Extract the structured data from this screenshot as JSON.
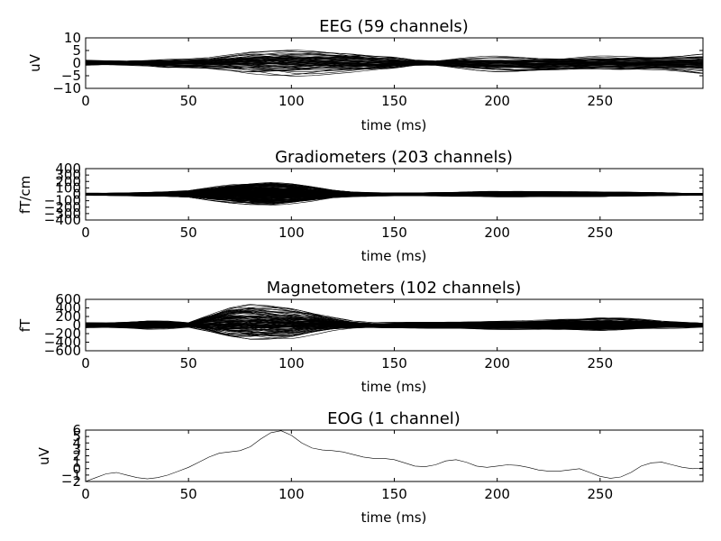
{
  "chart_data": [
    {
      "type": "line",
      "title": "EEG (59 channels)",
      "xlabel": "time (ms)",
      "ylabel": "uV",
      "xlim": [
        0,
        300
      ],
      "ylim": [
        -10,
        10
      ],
      "xticks": [
        0,
        50,
        100,
        150,
        200,
        250
      ],
      "yticks": [
        10,
        5,
        0,
        -5,
        -10
      ],
      "ytick_labels": [
        "10",
        "5",
        "0",
        "−5",
        "−10"
      ],
      "n_channels": 59,
      "line_color": "#000000",
      "envelope": {
        "x": [
          0,
          10,
          20,
          30,
          40,
          50,
          60,
          70,
          80,
          90,
          100,
          110,
          120,
          130,
          140,
          150,
          160,
          170,
          180,
          190,
          200,
          210,
          220,
          230,
          240,
          250,
          260,
          270,
          280,
          290,
          300
        ],
        "upper": [
          1.2,
          1.0,
          1.0,
          1.4,
          2.0,
          2.2,
          2.6,
          4.0,
          5.6,
          6.2,
          6.4,
          5.8,
          5.2,
          4.6,
          3.8,
          3.0,
          1.6,
          1.2,
          2.0,
          2.6,
          3.0,
          3.0,
          2.6,
          2.6,
          2.8,
          3.0,
          2.8,
          2.8,
          2.6,
          3.0,
          4.0
        ],
        "lower": [
          -1.2,
          -0.8,
          -1.0,
          -1.4,
          -2.4,
          -2.6,
          -3.0,
          -4.0,
          -5.4,
          -6.0,
          -6.2,
          -5.6,
          -5.0,
          -4.6,
          -4.0,
          -3.0,
          -1.4,
          -1.2,
          -2.2,
          -3.2,
          -4.0,
          -4.2,
          -3.8,
          -3.6,
          -3.2,
          -3.0,
          -3.2,
          -3.2,
          -3.0,
          -3.6,
          -4.6
        ]
      }
    },
    {
      "type": "line",
      "title": "Gradiometers (203 channels)",
      "xlabel": "time (ms)",
      "ylabel": "fT/cm",
      "xlim": [
        0,
        300
      ],
      "ylim": [
        -400,
        400
      ],
      "xticks": [
        0,
        50,
        100,
        150,
        200,
        250
      ],
      "yticks": [
        400,
        300,
        200,
        100,
        0,
        -100,
        -200,
        -300,
        -400
      ],
      "ytick_labels": [
        "400",
        "300",
        "200",
        "100",
        "0",
        "−100",
        "−200",
        "−300",
        "−400"
      ],
      "n_channels": 203,
      "line_color": "#000000",
      "envelope": {
        "x": [
          0,
          10,
          20,
          30,
          40,
          50,
          60,
          70,
          80,
          90,
          100,
          110,
          120,
          130,
          140,
          150,
          160,
          170,
          180,
          190,
          200,
          210,
          220,
          230,
          240,
          250,
          260,
          270,
          280,
          290,
          300
        ],
        "upper": [
          20,
          20,
          25,
          35,
          45,
          60,
          110,
          160,
          190,
          200,
          170,
          120,
          70,
          40,
          30,
          25,
          25,
          30,
          35,
          45,
          50,
          50,
          45,
          45,
          45,
          40,
          40,
          35,
          30,
          20,
          15
        ],
        "lower": [
          -20,
          -20,
          -25,
          -35,
          -40,
          -50,
          -100,
          -140,
          -170,
          -180,
          -150,
          -110,
          -60,
          -40,
          -30,
          -25,
          -25,
          -30,
          -35,
          -40,
          -45,
          -45,
          -40,
          -40,
          -40,
          -40,
          -35,
          -30,
          -25,
          -20,
          -15
        ]
      }
    },
    {
      "type": "line",
      "title": "Magnetometers (102 channels)",
      "xlabel": "time (ms)",
      "ylabel": "fT",
      "xlim": [
        0,
        300
      ],
      "ylim": [
        -600,
        600
      ],
      "xticks": [
        0,
        50,
        100,
        150,
        200,
        250
      ],
      "yticks": [
        600,
        400,
        200,
        0,
        -200,
        -400,
        -600
      ],
      "ytick_labels": [
        "600",
        "400",
        "200",
        "0",
        "−200",
        "−400",
        "−600"
      ],
      "n_channels": 102,
      "line_color": "#000000",
      "envelope": {
        "x": [
          0,
          10,
          20,
          30,
          40,
          50,
          60,
          70,
          80,
          90,
          100,
          110,
          120,
          130,
          140,
          150,
          160,
          170,
          180,
          190,
          200,
          210,
          220,
          230,
          240,
          250,
          260,
          270,
          280,
          290,
          300
        ],
        "upper": [
          70,
          60,
          80,
          110,
          100,
          60,
          250,
          450,
          520,
          480,
          420,
          320,
          200,
          100,
          60,
          70,
          80,
          90,
          90,
          100,
          110,
          110,
          120,
          140,
          150,
          180,
          170,
          140,
          100,
          80,
          60
        ],
        "lower": [
          -70,
          -60,
          -80,
          -110,
          -100,
          -60,
          -200,
          -360,
          -420,
          -400,
          -360,
          -260,
          -160,
          -100,
          -80,
          -80,
          -80,
          -90,
          -90,
          -100,
          -110,
          -110,
          -110,
          -120,
          -130,
          -150,
          -140,
          -110,
          -90,
          -80,
          -60
        ]
      }
    },
    {
      "type": "line",
      "title": "EOG (1 channel)",
      "xlabel": "time (ms)",
      "ylabel": "uV",
      "xlim": [
        0,
        300
      ],
      "ylim": [
        -2,
        6
      ],
      "xticks": [
        0,
        50,
        100,
        150,
        200,
        250
      ],
      "yticks": [
        6,
        5,
        4,
        3,
        2,
        1,
        0,
        -1,
        -2
      ],
      "ytick_labels": [
        "6",
        "5",
        "4",
        "3",
        "2",
        "1",
        "0",
        "−1",
        "−2"
      ],
      "n_channels": 1,
      "line_color": "#000000",
      "series": [
        {
          "x": [
            0,
            5,
            10,
            15,
            20,
            25,
            30,
            35,
            40,
            45,
            50,
            55,
            60,
            65,
            70,
            75,
            80,
            85,
            90,
            95,
            100,
            105,
            110,
            115,
            120,
            125,
            130,
            135,
            140,
            145,
            150,
            155,
            160,
            165,
            170,
            175,
            180,
            185,
            190,
            195,
            200,
            205,
            210,
            215,
            220,
            225,
            230,
            235,
            240,
            245,
            250,
            255,
            260,
            265,
            270,
            275,
            280,
            285,
            290,
            295,
            300
          ],
          "values": [
            -2.0,
            -1.4,
            -0.8,
            -0.6,
            -1.0,
            -1.4,
            -1.6,
            -1.4,
            -1.0,
            -0.4,
            0.2,
            1.0,
            1.8,
            2.4,
            2.6,
            2.8,
            3.4,
            4.6,
            5.6,
            5.9,
            5.2,
            4.0,
            3.2,
            2.9,
            2.8,
            2.6,
            2.2,
            1.8,
            1.6,
            1.6,
            1.4,
            0.9,
            0.4,
            0.3,
            0.6,
            1.2,
            1.4,
            1.0,
            0.4,
            0.2,
            0.4,
            0.6,
            0.5,
            0.2,
            -0.2,
            -0.4,
            -0.4,
            -0.2,
            0.0,
            -0.6,
            -1.2,
            -1.5,
            -1.3,
            -0.6,
            0.4,
            0.9,
            1.0,
            0.6,
            0.2,
            0.0,
            0.1
          ]
        }
      ]
    }
  ]
}
